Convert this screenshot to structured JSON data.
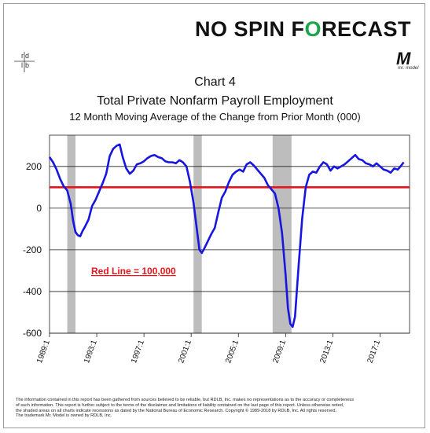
{
  "brand": {
    "text_a": "NO SPIN F",
    "text_o": "O",
    "text_b": "RECAST"
  },
  "logos": {
    "rdlb_letters": [
      "r",
      "d",
      "l",
      "b"
    ],
    "mr_model": "M",
    "mr_model_sub": "mr. model"
  },
  "chart_data": {
    "type": "line",
    "title": "Chart 4",
    "subtitle": "Total Private Nonfarm Payroll Employment",
    "subtitle2": "12 Month Moving Average of the Change from Prior Month (000)",
    "xlabel": "",
    "ylabel": "",
    "xlim": [
      1989.0,
      2019.5
    ],
    "ylim": [
      -600,
      350
    ],
    "yticks": [
      200,
      0,
      -200,
      -400,
      -600
    ],
    "xticks": [
      {
        "x": 1989.0,
        "label": "1989:1"
      },
      {
        "x": 1993.0,
        "label": "1993:1"
      },
      {
        "x": 1997.0,
        "label": "1997:1"
      },
      {
        "x": 2001.0,
        "label": "2001:1"
      },
      {
        "x": 2005.0,
        "label": "2005:1"
      },
      {
        "x": 2009.0,
        "label": "2009:1"
      },
      {
        "x": 2013.0,
        "label": "2013:1"
      },
      {
        "x": 2017.0,
        "label": "2017:1"
      }
    ],
    "grid": true,
    "recessions": [
      [
        1990.5,
        1991.2
      ],
      [
        2001.2,
        2001.9
      ],
      [
        2007.9,
        2009.5
      ]
    ],
    "reference_line": {
      "value": 100,
      "label": "Red Line = 100,000",
      "color": "#e8141b"
    },
    "series": [
      {
        "color": "#1616e0",
        "x": [
          1989.0,
          1989.3,
          1989.6,
          1989.9,
          1990.2,
          1990.5,
          1990.8,
          1991.0,
          1991.2,
          1991.4,
          1991.6,
          1991.8,
          1992.0,
          1992.3,
          1992.6,
          1992.9,
          1993.2,
          1993.5,
          1993.8,
          1994.1,
          1994.4,
          1994.7,
          1994.95,
          1995.2,
          1995.5,
          1995.8,
          1996.1,
          1996.4,
          1996.7,
          1997.0,
          1997.3,
          1997.6,
          1997.9,
          1998.2,
          1998.5,
          1998.8,
          1999.1,
          1999.4,
          1999.7,
          2000.0,
          2000.3,
          2000.6,
          2000.9,
          2001.2,
          2001.5,
          2001.7,
          2001.9,
          2002.1,
          2002.4,
          2002.7,
          2003.0,
          2003.3,
          2003.6,
          2003.9,
          2004.2,
          2004.5,
          2004.8,
          2005.1,
          2005.4,
          2005.7,
          2006.0,
          2006.3,
          2006.6,
          2006.9,
          2007.2,
          2007.5,
          2007.8,
          2008.1,
          2008.4,
          2008.7,
          2009.0,
          2009.2,
          2009.4,
          2009.6,
          2009.8,
          2010.1,
          2010.4,
          2010.7,
          2011.0,
          2011.3,
          2011.6,
          2011.9,
          2012.2,
          2012.5,
          2012.8,
          2013.1,
          2013.4,
          2013.7,
          2014.0,
          2014.3,
          2014.6,
          2014.9,
          2015.2,
          2015.5,
          2015.8,
          2016.1,
          2016.4,
          2016.7,
          2017.0,
          2017.3,
          2017.6,
          2017.9,
          2018.2,
          2018.5,
          2018.8,
          2019.0
        ],
        "values": [
          245,
          220,
          185,
          140,
          105,
          85,
          20,
          -60,
          -115,
          -130,
          -135,
          -110,
          -90,
          -55,
          10,
          40,
          80,
          120,
          165,
          250,
          285,
          300,
          305,
          245,
          190,
          165,
          180,
          210,
          215,
          225,
          240,
          250,
          255,
          245,
          240,
          225,
          220,
          220,
          215,
          230,
          220,
          200,
          125,
          25,
          -110,
          -200,
          -215,
          -195,
          -160,
          -125,
          -95,
          -20,
          50,
          80,
          125,
          160,
          175,
          185,
          175,
          210,
          220,
          205,
          185,
          165,
          145,
          110,
          90,
          70,
          0,
          -120,
          -320,
          -480,
          -555,
          -570,
          -520,
          -280,
          -50,
          100,
          160,
          175,
          170,
          200,
          220,
          210,
          180,
          200,
          190,
          200,
          210,
          225,
          240,
          255,
          235,
          230,
          215,
          210,
          200,
          215,
          200,
          185,
          180,
          170,
          190,
          185,
          205,
          220
        ]
      }
    ]
  },
  "footer": {
    "line1": "The information contained in this report has been gathered from sources believed to be reliable, but RDLB, Inc. makes no representations as to the accuracy or completeness",
    "line2": "of such information. This report is further subject to the terms of the disclaimer and limitations of liability contained on the last page of this report.  Unless otherwise noted,",
    "line3": "the shaded areas on all charts indicate recessions as dated by the National Bureau of Economic Research. Copyright © 1989-2018 by RDLB, Inc. All rights reserved.",
    "line4": "The trademark Mr. Model is owned by RDLB, Inc."
  }
}
